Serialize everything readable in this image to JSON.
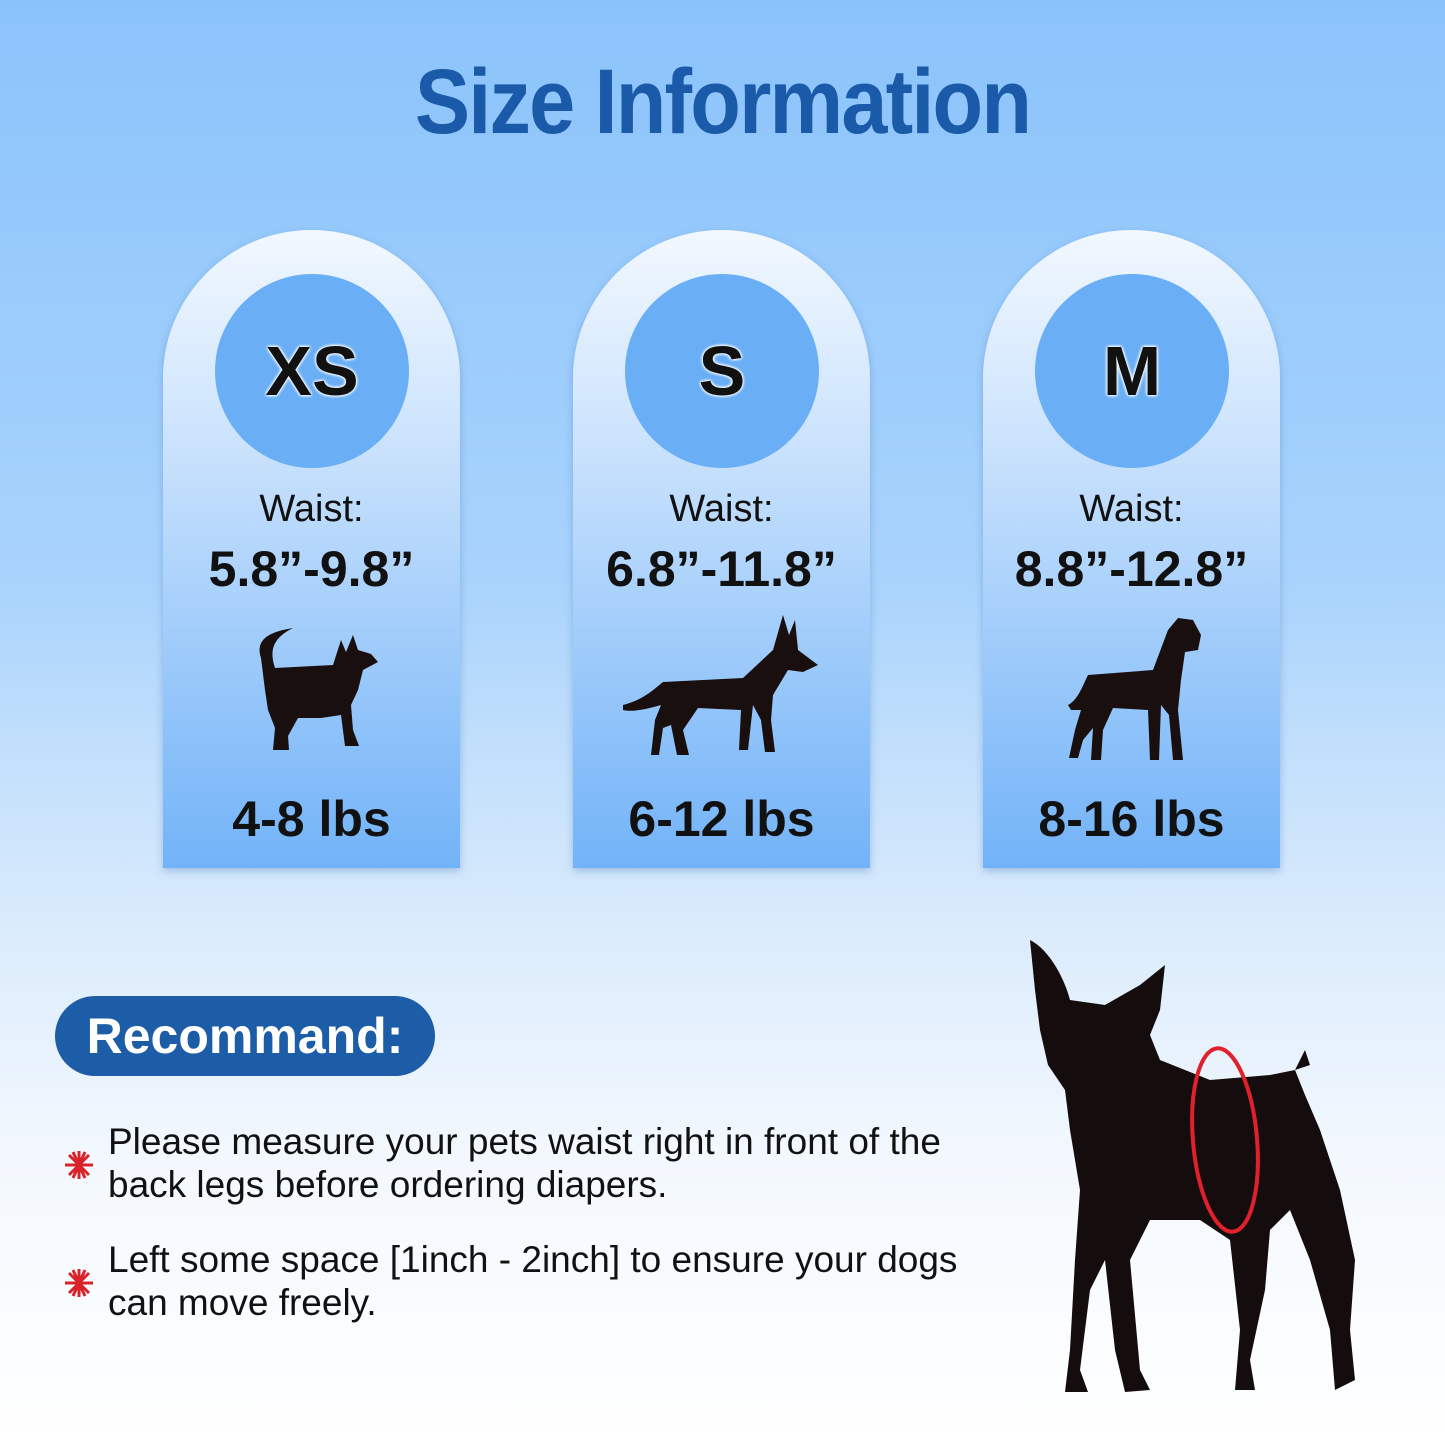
{
  "title": "Size Information",
  "sizes": [
    {
      "label": "XS",
      "waist_label": "Waist:",
      "waist": "5.8”-9.8”",
      "weight": "4-8 lbs"
    },
    {
      "label": "S",
      "waist_label": "Waist:",
      "waist": "6.8”-11.8”",
      "weight": "6-12 lbs"
    },
    {
      "label": "M",
      "waist_label": "Waist:",
      "waist": "8.8”-12.8”",
      "weight": "8-16 lbs"
    }
  ],
  "recommend": {
    "heading": "Recommand:",
    "tips": [
      "Please measure your pets waist right in front of the back legs before ordering diapers.",
      "Left some space [1inch - 2inch] to ensure your dogs can move freely."
    ]
  },
  "colors": {
    "title": "#1a5aa8",
    "badge": "#1d5ca6",
    "circle": "#6aaff5",
    "bullet": "#d8232a",
    "waist_ring": "#e0202a"
  }
}
